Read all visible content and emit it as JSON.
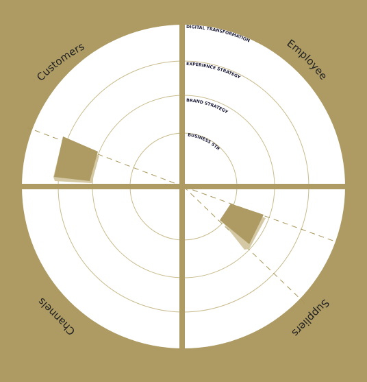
{
  "colors": {
    "background": "#ad9b63",
    "disc": "#ffffff",
    "ring_line": "#c8bb8c",
    "marker": "#ad9b63",
    "marker_shadow": "#d4c9a4",
    "dashed_line": "#a89558",
    "text": "#222222",
    "ring_text": "#1d1d3a"
  },
  "quadrants": {
    "customers": "Customers",
    "employees": "Employees",
    "channels": "Channels",
    "suppliers": "Suppliers"
  },
  "rings": {
    "digital": "DIGITAL TRANSFORMATION",
    "experience": "EXPERIENCE STRATEGY",
    "brand": "BRAND STRATEGY",
    "business": "BUSINESS STRATEGY"
  }
}
